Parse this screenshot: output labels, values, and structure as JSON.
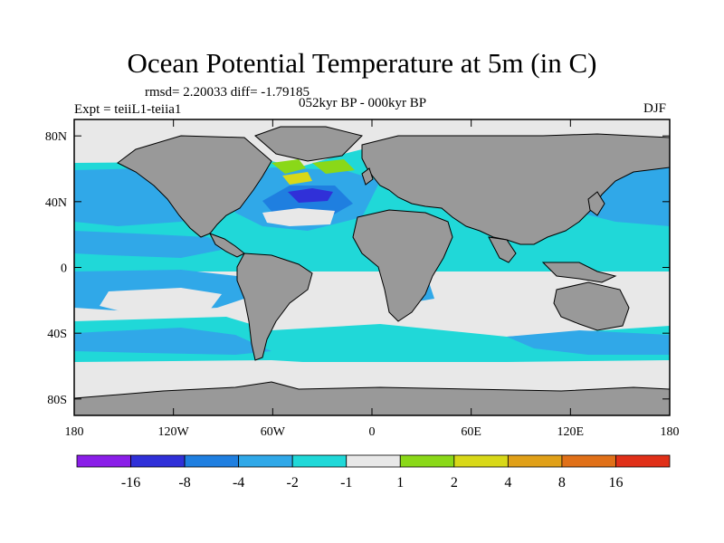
{
  "header": {
    "title": "Ocean Potential Temperature at 5m (in C)",
    "stats": "rmsd= 2.20033 diff= -1.79185",
    "experiment": "Expt = teiiL1-teiia1",
    "period": "052kyr BP - 000kyr BP",
    "season": "DJF"
  },
  "colors": {
    "land": "#999999",
    "coast": "#000000"
  },
  "chart_data": {
    "type": "heatmap",
    "title": "Ocean Potential Temperature at 5m (in C)",
    "xlim": [
      -180,
      180
    ],
    "ylim": [
      -90,
      90
    ],
    "x_ticks": [
      {
        "value": -180,
        "label": "180"
      },
      {
        "value": -120,
        "label": "120W"
      },
      {
        "value": -60,
        "label": "60W"
      },
      {
        "value": 0,
        "label": "0"
      },
      {
        "value": 60,
        "label": "60E"
      },
      {
        "value": 120,
        "label": "120E"
      },
      {
        "value": 180,
        "label": "180"
      }
    ],
    "y_ticks": [
      {
        "value": 80,
        "label": "80N"
      },
      {
        "value": 40,
        "label": "40N"
      },
      {
        "value": 0,
        "label": "0"
      },
      {
        "value": -40,
        "label": "40S"
      },
      {
        "value": -80,
        "label": "80S"
      }
    ],
    "colorbar": {
      "levels": [
        -16,
        -8,
        -4,
        -2,
        -1,
        1,
        2,
        4,
        8,
        16
      ],
      "labels": [
        "-16",
        "-8",
        "-4",
        "-2",
        "-1",
        "1",
        "2",
        "4",
        "8",
        "16"
      ],
      "colors": [
        "#8a1ee8",
        "#3030d8",
        "#1f7fe0",
        "#30a8e8",
        "#20d8d8",
        "#e8e8e8",
        "#8ad818",
        "#d8d818",
        "#e0a018",
        "#e07018",
        "#e03018"
      ]
    }
  }
}
